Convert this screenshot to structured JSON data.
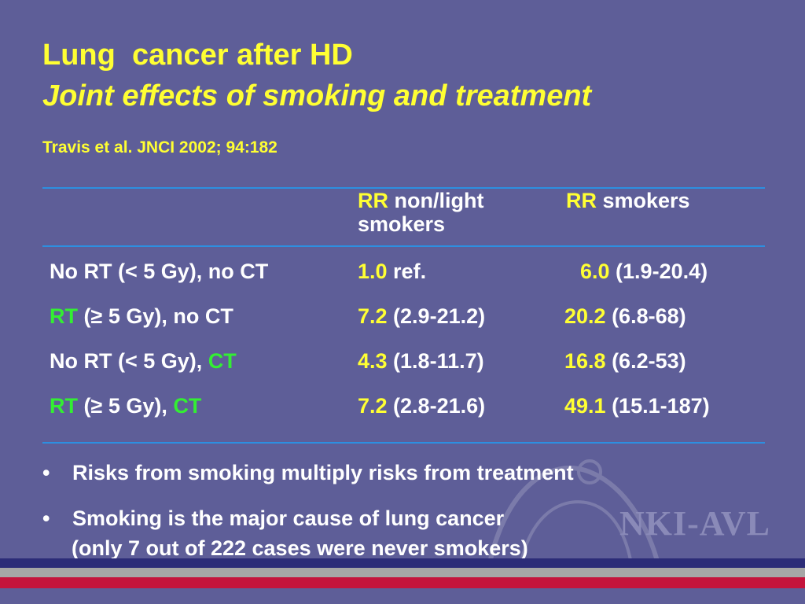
{
  "title": {
    "line1": "Lung  cancer after HD",
    "line2": "Joint effects of smoking and treatment"
  },
  "citation": "Travis et al. JNCI 2002; 94:182",
  "table": {
    "headers": {
      "col1": {
        "rr": "RR",
        "rest1": " non/light",
        "rest2": "smokers"
      },
      "col2": {
        "rr": "RR",
        "rest": " smokers"
      }
    },
    "rows": [
      {
        "label": [
          {
            "text": "No RT (< 5 Gy), no CT",
            "hl": false
          }
        ],
        "nl_value": "1.0",
        "nl_ci": " ref.",
        "sm_value": "6.0",
        "sm_ci": " (1.9-20.4)"
      },
      {
        "label": [
          {
            "text": "RT",
            "hl": true
          },
          {
            "text": " (≥ 5 Gy), no CT",
            "hl": false
          }
        ],
        "nl_value": "7.2",
        "nl_ci": " (2.9-21.2)",
        "sm_value": "20.2",
        "sm_ci": " (6.8-68)"
      },
      {
        "label": [
          {
            "text": "No RT (< 5 Gy), ",
            "hl": false
          },
          {
            "text": "CT",
            "hl": true
          }
        ],
        "nl_value": "4.3",
        "nl_ci": " (1.8-11.7)",
        "sm_value": "16.8",
        "sm_ci": " (6.2-53)"
      },
      {
        "label": [
          {
            "text": "RT",
            "hl": true
          },
          {
            "text": " (≥ 5 Gy), ",
            "hl": false
          },
          {
            "text": "CT",
            "hl": true
          }
        ],
        "nl_value": "7.2",
        "nl_ci": " (2.8-21.6)",
        "sm_value": "49.1",
        "sm_ci": " (15.1-187)"
      }
    ]
  },
  "bullets": [
    {
      "marker": "•",
      "text": "Risks from smoking multiply risks from treatment"
    },
    {
      "marker": "•",
      "text": "Smoking is the major cause of lung cancer",
      "continuation": "(only 7 out of 222 cases were never smokers)"
    }
  ],
  "logo": "NKI-AVL",
  "colors": {
    "background": "#5e5e98",
    "title": "#ffff33",
    "highlight_green": "#33ee33",
    "rule": "#2d8fe0",
    "band_navy": "#2c2c78",
    "band_grey": "#a6a6a6",
    "band_red": "#c4143c"
  }
}
